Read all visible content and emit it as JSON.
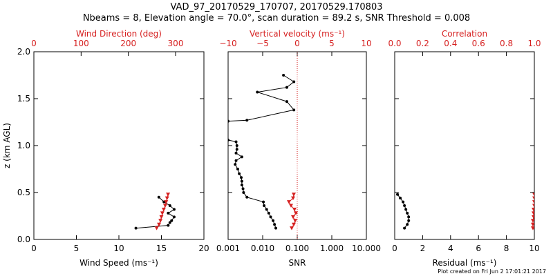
{
  "title_line1": "VAD_97_20170529_170707, 20170529.170803",
  "title_line2": "Nbeams = 8, Elevation angle = 70.0°, scan duration = 89.2 s, SNR Threshold = 0.008",
  "footnote": "Plot created on Fri Jun  2 17:01:21 2017",
  "colors": {
    "primary": "#000000",
    "secondary": "#d62020"
  },
  "chart_data": [
    {
      "type": "line",
      "ylabel": "z (km AGL)",
      "ylim": [
        0,
        2.0
      ],
      "yticks": [
        "0.0",
        "0.5",
        "1.0",
        "1.5",
        "2.0"
      ],
      "bottom_axis": {
        "label": "Wind Speed (ms⁻¹)",
        "range": [
          0,
          20
        ],
        "ticks": [
          "0",
          "5",
          "10",
          "15",
          "20"
        ]
      },
      "top_axis": {
        "label": "Wind Direction (deg)",
        "range": [
          0,
          360
        ],
        "ticks": [
          "0",
          "100",
          "200",
          "300"
        ]
      },
      "series": [
        {
          "axis": "bottom",
          "color": "#000000",
          "marker": "circle",
          "points": [
            [
              12.0,
              0.12
            ],
            [
              15.8,
              0.15
            ],
            [
              16.0,
              0.18
            ],
            [
              16.2,
              0.2
            ],
            [
              16.5,
              0.24
            ],
            [
              15.8,
              0.28
            ],
            [
              16.5,
              0.32
            ],
            [
              16.0,
              0.36
            ],
            [
              15.3,
              0.4
            ],
            [
              14.7,
              0.45
            ]
          ]
        },
        {
          "axis": "top",
          "color": "#d62020",
          "marker": "triangle",
          "points": [
            [
              260,
              0.12
            ],
            [
              265,
              0.16
            ],
            [
              268,
              0.2
            ],
            [
              270,
              0.24
            ],
            [
              272,
              0.28
            ],
            [
              275,
              0.32
            ],
            [
              278,
              0.36
            ],
            [
              280,
              0.4
            ],
            [
              282,
              0.44
            ],
            [
              284,
              0.48
            ]
          ]
        }
      ]
    },
    {
      "type": "line",
      "ylim": [
        0,
        2.0
      ],
      "bottom_axis": {
        "label": "SNR",
        "scale": "log",
        "range": [
          0.001,
          10
        ],
        "ticks": [
          "0.001",
          "0.010",
          "0.100",
          "1.000",
          "10.000"
        ]
      },
      "top_axis": {
        "label": "Vertical velocity (ms⁻¹)",
        "range": [
          -10,
          10
        ],
        "ticks": [
          "−10",
          "−5",
          "0",
          "5",
          "10"
        ]
      },
      "zero_line": 0,
      "series": [
        {
          "axis": "bottom",
          "color": "#000000",
          "marker": "circle",
          "points": [
            [
              0.024,
              0.12
            ],
            [
              0.022,
              0.16
            ],
            [
              0.02,
              0.2
            ],
            [
              0.017,
              0.24
            ],
            [
              0.015,
              0.28
            ],
            [
              0.013,
              0.32
            ],
            [
              0.011,
              0.36
            ],
            [
              0.0105,
              0.4
            ],
            [
              0.0035,
              0.45
            ],
            [
              0.0028,
              0.5
            ],
            [
              0.0027,
              0.54
            ],
            [
              0.0025,
              0.58
            ],
            [
              0.0025,
              0.62
            ],
            [
              0.0024,
              0.66
            ],
            [
              0.0021,
              0.7
            ],
            [
              0.0019,
              0.75
            ],
            [
              0.0016,
              0.8
            ],
            [
              0.0017,
              0.84
            ],
            [
              0.0025,
              0.88
            ],
            [
              0.0017,
              0.92
            ],
            [
              0.0018,
              0.96
            ],
            [
              0.0018,
              1.0
            ],
            [
              0.0017,
              1.04
            ],
            [
              0.001,
              1.06
            ],
            [
              0.001,
              1.26
            ],
            [
              0.0035,
              1.27
            ],
            [
              0.08,
              1.38
            ],
            [
              0.05,
              1.47
            ],
            [
              0.007,
              1.57
            ],
            [
              0.05,
              1.62
            ],
            [
              0.08,
              1.68
            ],
            [
              0.04,
              1.75
            ]
          ]
        },
        {
          "axis": "top",
          "color": "#d62020",
          "marker": "triangle",
          "points": [
            [
              -0.8,
              0.12
            ],
            [
              -0.5,
              0.16
            ],
            [
              -0.3,
              0.2
            ],
            [
              -0.6,
              0.24
            ],
            [
              -0.2,
              0.28
            ],
            [
              -0.4,
              0.32
            ],
            [
              -0.9,
              0.36
            ],
            [
              -1.2,
              0.4
            ],
            [
              -0.6,
              0.44
            ],
            [
              -0.5,
              0.48
            ]
          ]
        }
      ]
    },
    {
      "type": "line",
      "ylim": [
        0,
        2.0
      ],
      "bottom_axis": {
        "label": "Residual (ms⁻¹)",
        "range": [
          0,
          10
        ],
        "ticks": [
          "0",
          "2",
          "4",
          "6",
          "8",
          "10"
        ]
      },
      "top_axis": {
        "label": "Correlation",
        "range": [
          0,
          1
        ],
        "ticks": [
          "0.0",
          "0.2",
          "0.4",
          "0.6",
          "0.8",
          "1.0"
        ]
      },
      "series": [
        {
          "axis": "bottom",
          "color": "#000000",
          "marker": "circle",
          "points": [
            [
              0.7,
              0.12
            ],
            [
              0.9,
              0.16
            ],
            [
              1.0,
              0.2
            ],
            [
              1.0,
              0.24
            ],
            [
              0.9,
              0.28
            ],
            [
              0.8,
              0.32
            ],
            [
              0.7,
              0.36
            ],
            [
              0.6,
              0.4
            ],
            [
              0.4,
              0.44
            ],
            [
              0.2,
              0.48
            ]
          ]
        },
        {
          "axis": "top",
          "color": "#d62020",
          "marker": "triangle",
          "points": [
            [
              0.99,
              0.12
            ],
            [
              0.99,
              0.16
            ],
            [
              0.99,
              0.2
            ],
            [
              0.995,
              0.24
            ],
            [
              0.995,
              0.28
            ],
            [
              0.995,
              0.32
            ],
            [
              1.0,
              0.36
            ],
            [
              1.0,
              0.4
            ],
            [
              1.0,
              0.44
            ],
            [
              1.0,
              0.48
            ]
          ]
        }
      ]
    }
  ]
}
